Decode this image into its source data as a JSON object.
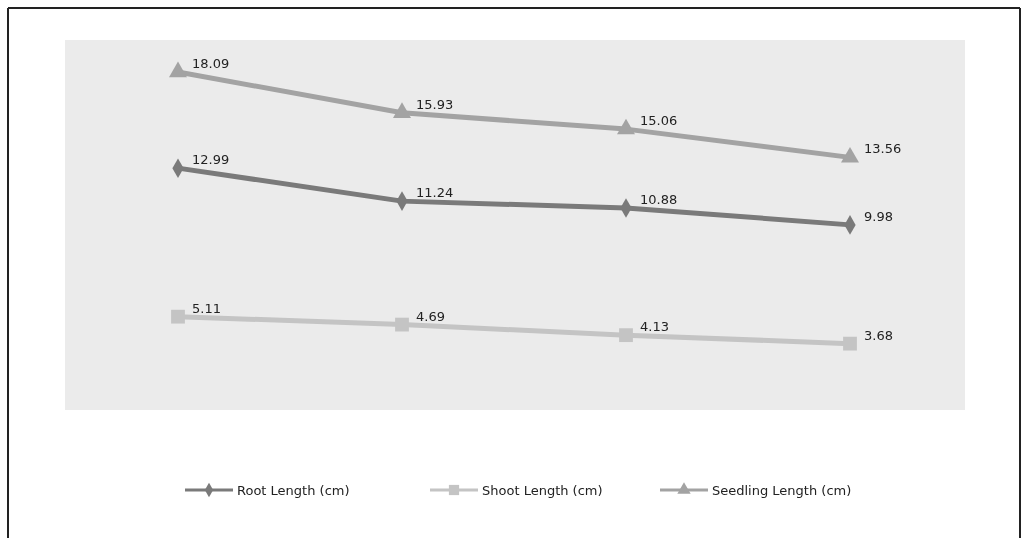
{
  "chart_data": {
    "type": "line",
    "categories": [
      null,
      null,
      null,
      null
    ],
    "series": [
      {
        "name": "Root Length (cm)",
        "color": "#7a7a7a",
        "marker": "diamond",
        "values": [
          12.99,
          11.24,
          10.88,
          9.98
        ]
      },
      {
        "name": "Shoot Length (cm)",
        "color": "#c4c4c4",
        "marker": "square",
        "values": [
          5.11,
          4.69,
          4.13,
          3.68
        ]
      },
      {
        "name": "Seedling Length (cm)",
        "color": "#a3a3a3",
        "marker": "triangle",
        "values": [
          18.09,
          15.93,
          15.06,
          13.56
        ]
      }
    ],
    "data_labels": true,
    "legend": "bottom"
  }
}
